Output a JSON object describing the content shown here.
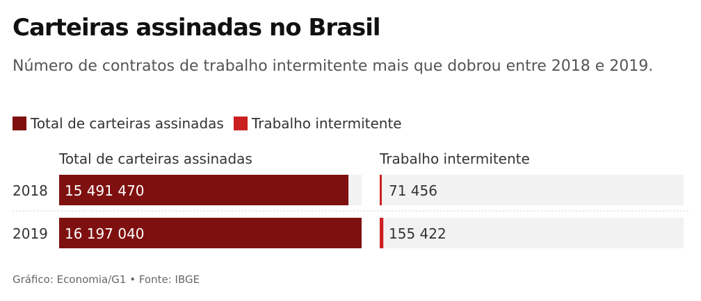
{
  "title": "Carteiras assinadas no Brasil",
  "subtitle": "Número de contratos de trabalho intermitente mais que dobrou entre 2018 e 2019.",
  "legend": [
    {
      "label": "Total de carteiras assinadas",
      "color": "#7f1010"
    },
    {
      "label": "Trabalho intermitente",
      "color": "#cc2020"
    }
  ],
  "source": "Gráfico: Economia/G1 • Fonte: IBGE",
  "colors": {
    "dark_red": "#7f1010",
    "red": "#cc2020",
    "track": "#f2f2f2",
    "divider": "#cccccc"
  },
  "chart_data": {
    "type": "bar",
    "orientation": "horizontal",
    "categories": [
      "2018",
      "2019"
    ],
    "series": [
      {
        "name": "Total de carteiras assinadas",
        "values": [
          15491470,
          16197040
        ],
        "labels": [
          "15 491 470",
          "16 197 040"
        ]
      },
      {
        "name": "Trabalho intermitente",
        "values": [
          71456,
          155422
        ],
        "labels": [
          "71 456",
          "155 422"
        ]
      }
    ],
    "panel_titles": [
      "Total de carteiras assinadas",
      "Trabalho intermitente"
    ]
  }
}
